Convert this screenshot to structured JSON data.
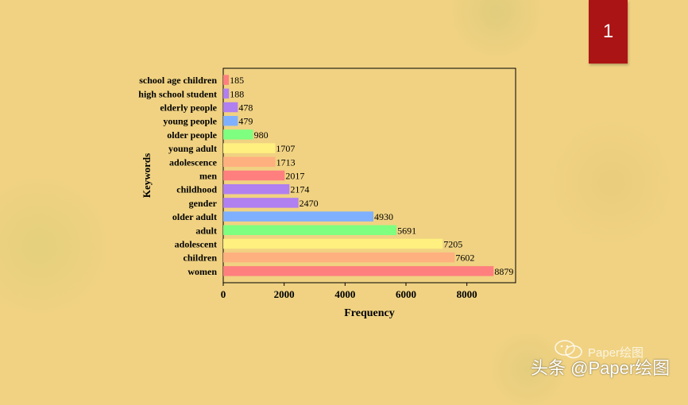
{
  "page_number": "1",
  "watermark": {
    "main": "头条 @Paper绘图",
    "sub": "Paper绘图",
    "icon": "wechat-icon"
  },
  "colors": {
    "background": "#f0d282",
    "badge": "#ab1414"
  },
  "chart_data": {
    "type": "bar",
    "orientation": "horizontal",
    "categories": [
      "school age children",
      "high school student",
      "elderly people",
      "young people",
      "older people",
      "young adult",
      "adolescence",
      "men",
      "childhood",
      "gender",
      "older adult",
      "adult",
      "adolescent",
      "children",
      "women"
    ],
    "values": [
      185,
      188,
      478,
      479,
      980,
      1707,
      1713,
      2017,
      2174,
      2470,
      4930,
      5691,
      7205,
      7602,
      8879
    ],
    "colors": [
      "#ff7f7f",
      "#b07ff0",
      "#b07ff0",
      "#7fb0ff",
      "#7fff7f",
      "#fff07f",
      "#ffb07f",
      "#ff7f7f",
      "#b07ff0",
      "#b07ff0",
      "#7fb0ff",
      "#7fff7f",
      "#fff07f",
      "#ffb07f",
      "#ff7f7f"
    ],
    "xlabel": "Frequency",
    "ylabel": "Keywords",
    "xlim": [
      0,
      9600
    ],
    "xticks": [
      0,
      2000,
      4000,
      6000,
      8000
    ],
    "grid": false,
    "legend": "none"
  }
}
